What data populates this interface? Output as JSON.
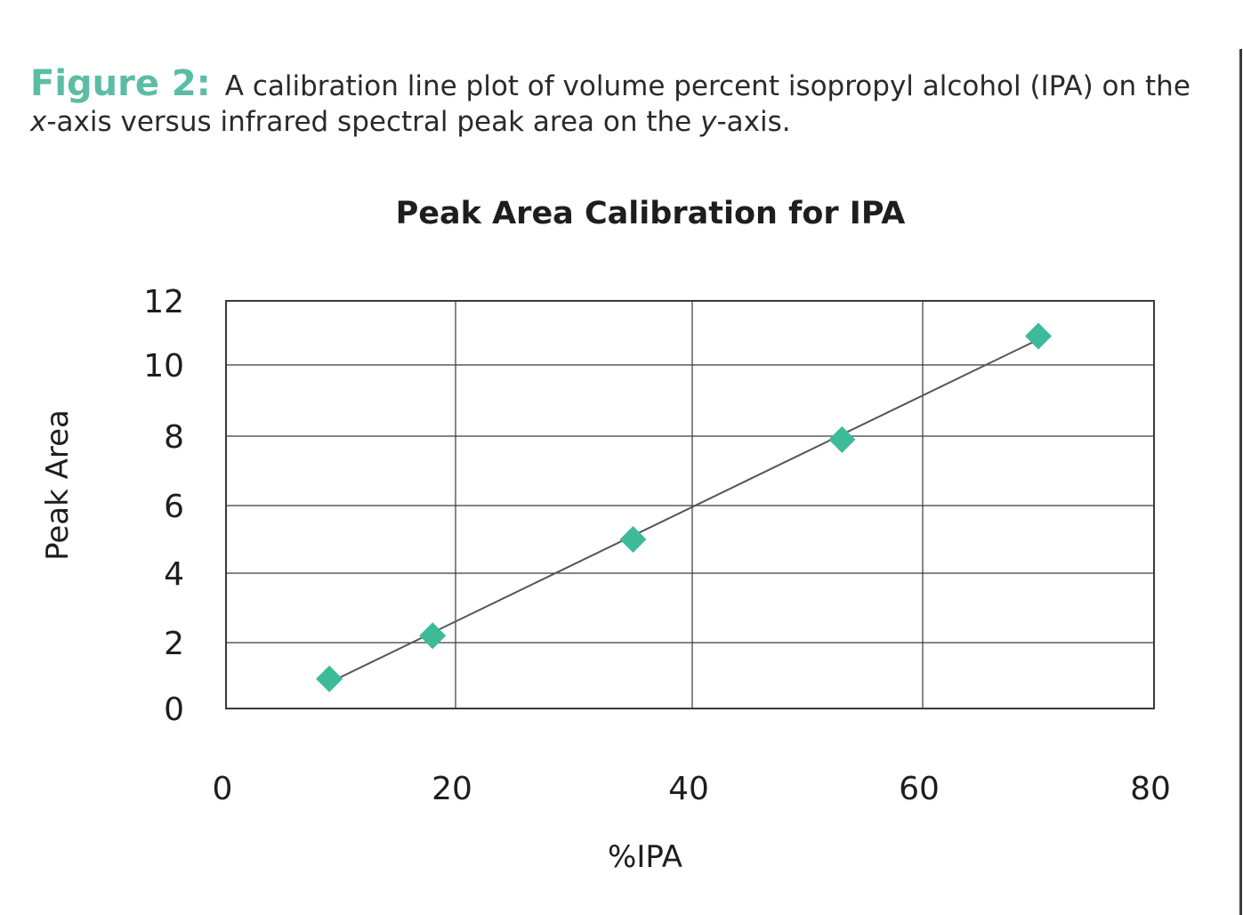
{
  "caption": {
    "label": "Figure 2:",
    "text_1": "A calibration line plot of volume percent isopropyl alcohol (IPA) on the ",
    "x_var": "x",
    "text_2": "-axis versus infrared spectral peak area on the ",
    "y_var": "y",
    "text_3": "-axis."
  },
  "colors": {
    "caption_label": "#5cbda6",
    "marker": "#3dba98",
    "line": "#555555",
    "grid": "#3a3a3a"
  },
  "chart_data": {
    "type": "scatter",
    "title": "Peak Area Calibration for IPA",
    "xlabel": "%IPA",
    "ylabel": "Peak Area",
    "xlim": [
      0,
      80
    ],
    "ylim": [
      0,
      12
    ],
    "x_ticks": [
      0,
      20,
      40,
      60,
      80
    ],
    "y_ticks": [
      0,
      2,
      4,
      6,
      8,
      10,
      12
    ],
    "grid": true,
    "marker": "diamond",
    "trendline": "linear",
    "series": [
      {
        "points": [
          {
            "x": 9,
            "y": 0.9
          },
          {
            "x": 18,
            "y": 2.2
          },
          {
            "x": 35,
            "y": 5.0
          },
          {
            "x": 53,
            "y": 7.9
          },
          {
            "x": 70,
            "y": 10.9
          }
        ]
      }
    ]
  }
}
